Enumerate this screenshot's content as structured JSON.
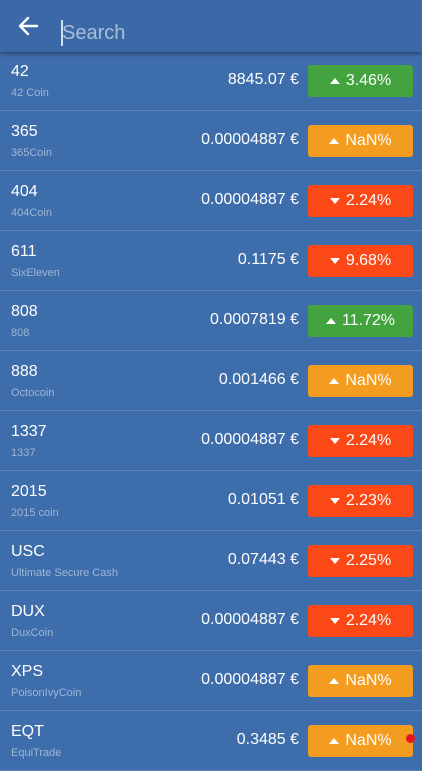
{
  "header": {
    "search_placeholder": "Search"
  },
  "rows": [
    {
      "symbol": "42",
      "name": "42 Coin",
      "price": "8845.07 €",
      "change": "3.46%",
      "trend": "up",
      "color": "#43a33f"
    },
    {
      "symbol": "365",
      "name": "365Coin",
      "price": "0.00004887 €",
      "change": "NaN%",
      "trend": "up",
      "color": "#f39c1f"
    },
    {
      "symbol": "404",
      "name": "404Coin",
      "price": "0.00004887 €",
      "change": "2.24%",
      "trend": "down",
      "color": "#fc4816"
    },
    {
      "symbol": "611",
      "name": "SixEleven",
      "price": "0.1175 €",
      "change": "9.68%",
      "trend": "down",
      "color": "#fc4816"
    },
    {
      "symbol": "808",
      "name": "808",
      "price": "0.0007819 €",
      "change": "11.72%",
      "trend": "up",
      "color": "#43a33f"
    },
    {
      "symbol": "888",
      "name": "Octocoin",
      "price": "0.001466 €",
      "change": "NaN%",
      "trend": "up",
      "color": "#f39c1f"
    },
    {
      "symbol": "1337",
      "name": "1337",
      "price": "0.00004887 €",
      "change": "2.24%",
      "trend": "down",
      "color": "#fc4816"
    },
    {
      "symbol": "2015",
      "name": "2015 coin",
      "price": "0.01051 €",
      "change": "2.23%",
      "trend": "down",
      "color": "#fc4816"
    },
    {
      "symbol": "USC",
      "name": "Ultimate Secure Cash",
      "price": "0.07443 €",
      "change": "2.25%",
      "trend": "down",
      "color": "#fc4816"
    },
    {
      "symbol": "DUX",
      "name": "DuxCoin",
      "price": "0.00004887 €",
      "change": "2.24%",
      "trend": "down",
      "color": "#fc4816"
    },
    {
      "symbol": "XPS",
      "name": "PoisonIvyCoin",
      "price": "0.00004887 €",
      "change": "NaN%",
      "trend": "up",
      "color": "#f39c1f"
    },
    {
      "symbol": "EQT",
      "name": "EquiTrade",
      "price": "0.3485 €",
      "change": "NaN%",
      "trend": "up",
      "color": "#f39c1f"
    }
  ]
}
